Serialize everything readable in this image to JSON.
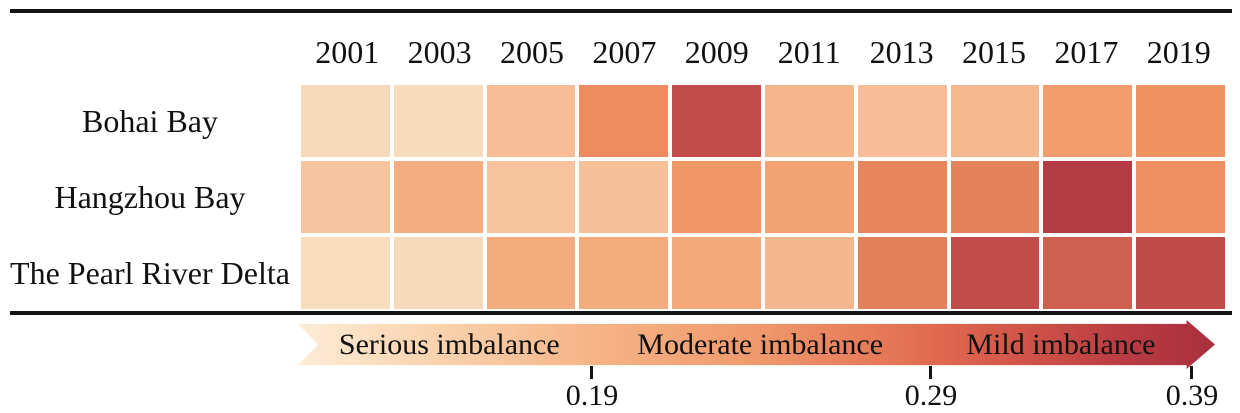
{
  "figure": {
    "background": "#ffffff",
    "text_color": "#111111",
    "rule_color": "#141414"
  },
  "chart_data": {
    "type": "heatmap",
    "x": [
      "2001",
      "2003",
      "2005",
      "2007",
      "2009",
      "2011",
      "2013",
      "2015",
      "2017",
      "2019"
    ],
    "rows": [
      {
        "name": "Bohai Bay",
        "colors": [
          "#f5d9b8",
          "#f6dcbd",
          "#f6bd96",
          "#ee8c5d",
          "#c04b49",
          "#f5b68b",
          "#f7bd98",
          "#f5b98f",
          "#f29e6c",
          "#f0945f"
        ],
        "estimated_values": [
          0.16,
          0.16,
          0.2,
          0.27,
          0.35,
          0.21,
          0.2,
          0.21,
          0.24,
          0.25
        ]
      },
      {
        "name": "Hangzhou Bay",
        "colors": [
          "#f6c5a0",
          "#f4ae81",
          "#f6c39d",
          "#f6c098",
          "#ef9866",
          "#f3a271",
          "#e7865c",
          "#e3825b",
          "#b23b44",
          "#ed8f5f"
        ],
        "estimated_values": [
          0.19,
          0.22,
          0.19,
          0.2,
          0.25,
          0.23,
          0.28,
          0.28,
          0.36,
          0.26
        ]
      },
      {
        "name": "The Pearl River Delta",
        "colors": [
          "#f7ddbe",
          "#f6d9ba",
          "#f3aa7d",
          "#f3aa7c",
          "#f3a97a",
          "#f5b78d",
          "#e2805a",
          "#c04d4a",
          "#ce614f",
          "#bf4a47"
        ],
        "estimated_values": [
          0.15,
          0.16,
          0.22,
          0.22,
          0.22,
          0.21,
          0.29,
          0.34,
          0.31,
          0.35
        ]
      }
    ],
    "colorbar": {
      "orientation": "horizontal",
      "min_color": "#fdecd6",
      "max_color": "#a92f3d",
      "tick_values": [
        0.19,
        0.29,
        0.39
      ],
      "region_labels": [
        "Serious imbalance",
        "Moderate imbalance",
        "Mild imbalance"
      ]
    },
    "grid": "white gridlines between cells",
    "legend_position": "bottom"
  },
  "legend": {
    "labels": [
      {
        "text": "Serious imbalance"
      },
      {
        "text": "Moderate imbalance"
      },
      {
        "text": "Mild imbalance"
      }
    ],
    "tick_labels": [
      "0.19",
      "0.29",
      "0.39"
    ]
  }
}
